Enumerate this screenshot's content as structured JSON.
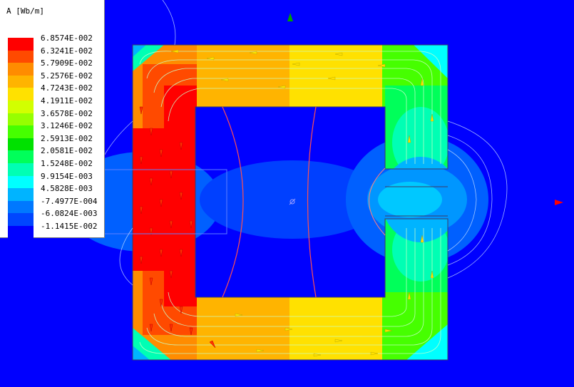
{
  "legend": {
    "title": "A [Wb/m]",
    "entries": [
      {
        "label": "6.8574E-002",
        "color": "#ff0000"
      },
      {
        "label": "6.3241E-002",
        "color": "#ff4a00"
      },
      {
        "label": "5.7909E-002",
        "color": "#ff8c00"
      },
      {
        "label": "5.2576E-002",
        "color": "#ffb400"
      },
      {
        "label": "4.7243E-002",
        "color": "#ffe100"
      },
      {
        "label": "4.1911E-002",
        "color": "#d2ff00"
      },
      {
        "label": "3.6578E-002",
        "color": "#96ff00"
      },
      {
        "label": "3.1246E-002",
        "color": "#46ff00"
      },
      {
        "label": "2.5913E-002",
        "color": "#00e100"
      },
      {
        "label": "2.0581E-002",
        "color": "#00ff5a"
      },
      {
        "label": "1.5248E-002",
        "color": "#00ffb4"
      },
      {
        "label": "9.9154E-003",
        "color": "#00ffff"
      },
      {
        "label": "4.5828E-003",
        "color": "#00b4ff"
      },
      {
        "label": "-7.4977E-004",
        "color": "#0078ff"
      },
      {
        "label": "-6.0824E-003",
        "color": "#0046ff"
      },
      {
        "label": "-1.1415E-002",
        "color": "#0000ff"
      }
    ]
  },
  "colors": {
    "background": "#0000ff",
    "contour_line": "#ff5050",
    "field_line": "#c8ffc8",
    "axis_y": "#00a000",
    "axis_x": "#ff0000"
  },
  "icons": [
    "coordinate-origin-icon",
    "y-axis-arrow-icon",
    "x-axis-arrow-icon"
  ]
}
